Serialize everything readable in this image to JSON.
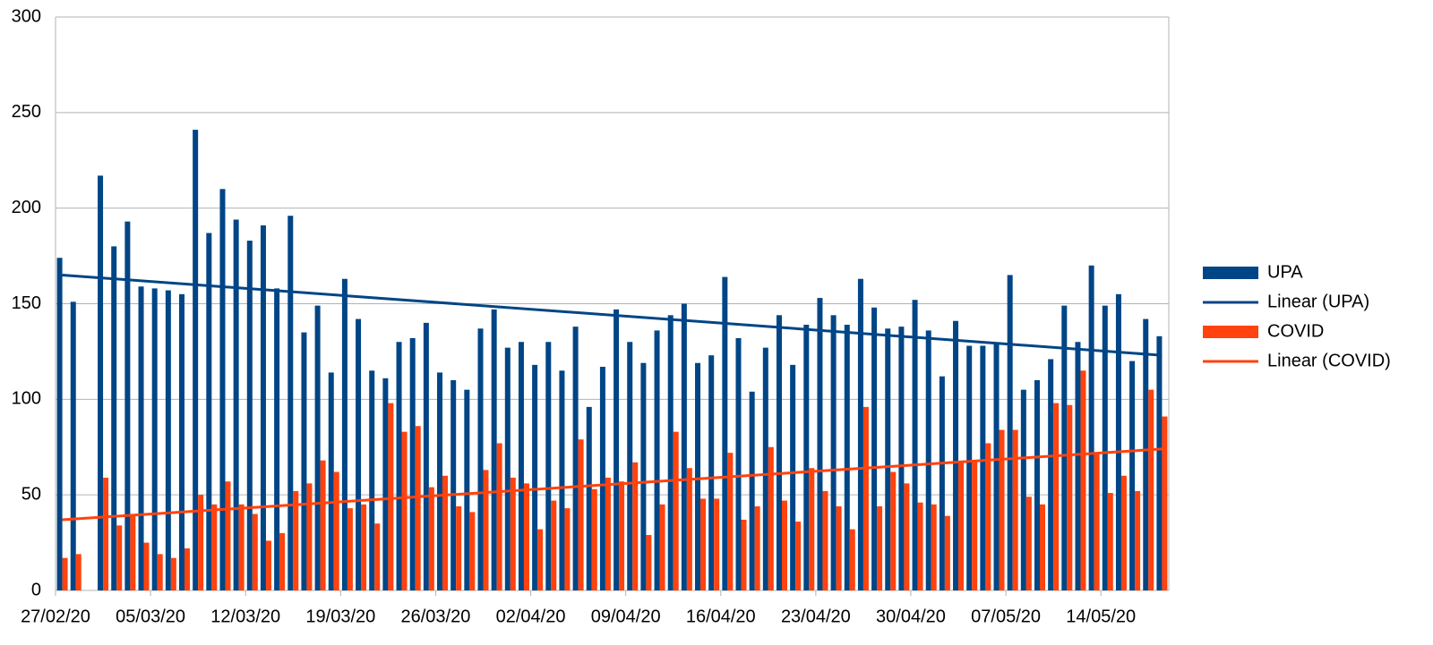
{
  "chart_data": {
    "type": "bar",
    "categories": [
      "27/02/20",
      null,
      null,
      null,
      null,
      null,
      null,
      "05/03/20",
      null,
      null,
      null,
      null,
      null,
      null,
      "12/03/20",
      null,
      null,
      null,
      null,
      null,
      null,
      "19/03/20",
      null,
      null,
      null,
      null,
      null,
      null,
      "26/03/20",
      null,
      null,
      null,
      null,
      null,
      null,
      "02/04/20",
      null,
      null,
      null,
      null,
      null,
      null,
      "09/04/20",
      null,
      null,
      null,
      null,
      null,
      null,
      "16/04/20",
      null,
      null,
      null,
      null,
      null,
      null,
      "23/04/20",
      null,
      null,
      null,
      null,
      null,
      null,
      "30/04/20",
      null,
      null,
      null,
      null,
      null,
      null,
      "07/05/20",
      null,
      null,
      null,
      null,
      null,
      null,
      "14/05/20",
      null,
      null,
      null,
      null
    ],
    "series": [
      {
        "name": "UPA",
        "color": "#004586",
        "values": [
          174,
          151,
          null,
          217,
          180,
          193,
          159,
          158,
          157,
          155,
          241,
          187,
          210,
          194,
          183,
          191,
          158,
          196,
          135,
          149,
          114,
          163,
          142,
          115,
          111,
          130,
          132,
          140,
          114,
          110,
          105,
          137,
          147,
          127,
          130,
          118,
          130,
          115,
          138,
          96,
          117,
          147,
          130,
          119,
          136,
          144,
          150,
          119,
          123,
          164,
          132,
          104,
          127,
          144,
          118,
          139,
          153,
          144,
          139,
          163,
          148,
          137,
          138,
          152,
          136,
          112,
          141,
          128,
          128,
          129,
          165,
          105,
          110,
          121,
          149,
          130,
          170,
          149,
          155,
          120,
          142,
          133
        ]
      },
      {
        "name": "COVID",
        "color": "#ff420e",
        "values": [
          17,
          19,
          null,
          59,
          34,
          39,
          25,
          19,
          17,
          22,
          50,
          45,
          57,
          45,
          40,
          26,
          30,
          52,
          56,
          68,
          62,
          43,
          45,
          35,
          98,
          83,
          86,
          54,
          60,
          44,
          41,
          63,
          77,
          59,
          56,
          32,
          47,
          43,
          79,
          53,
          59,
          57,
          67,
          29,
          45,
          83,
          64,
          48,
          48,
          72,
          37,
          44,
          75,
          47,
          36,
          64,
          52,
          44,
          32,
          96,
          44,
          62,
          56,
          46,
          45,
          39,
          67,
          68,
          77,
          84,
          84,
          49,
          45,
          98,
          97,
          115,
          72,
          51,
          60,
          52,
          105,
          91
        ]
      }
    ],
    "trendlines": [
      {
        "name": "Linear (UPA)",
        "color": "#004586",
        "values": [
          165,
          123
        ]
      },
      {
        "name": "Linear (COVID)",
        "color": "#ff420e",
        "values": [
          37,
          74
        ]
      }
    ],
    "ylim": [
      0,
      300
    ],
    "yticks": [
      0,
      50,
      100,
      150,
      200,
      250,
      300
    ],
    "grid": true,
    "legend": "right"
  }
}
